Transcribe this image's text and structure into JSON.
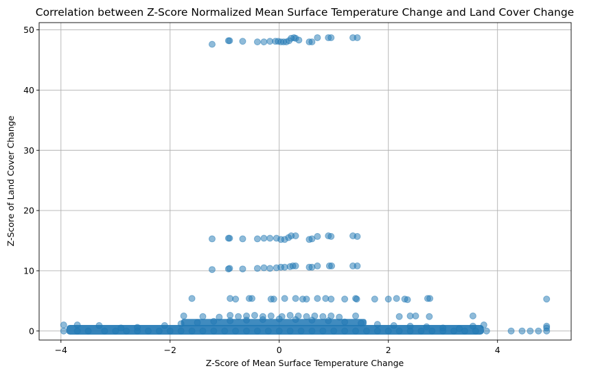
{
  "chart_data": {
    "type": "scatter",
    "title": "Correlation between Z-Score Normalized Mean Surface Temperature Change and Land Cover Change",
    "xlabel": "Z-Score of Mean Surface Temperature Change",
    "ylabel": "Z-Score of Land Cover Change",
    "xlim": [
      -4.4,
      5.35
    ],
    "ylim": [
      -1.5,
      51.2
    ],
    "xticks": [
      -4,
      -2,
      0,
      2,
      4
    ],
    "yticks": [
      0,
      10,
      20,
      30,
      40,
      50
    ],
    "grid": true,
    "color": "#1f77b4",
    "alpha": 0.5,
    "series": [
      {
        "points": [
          [
            -1.23,
            47.6
          ],
          [
            -0.93,
            48.2
          ],
          [
            -0.91,
            48.2
          ],
          [
            -0.67,
            48.1
          ],
          [
            -0.4,
            48.0
          ],
          [
            -0.28,
            48.0
          ],
          [
            -0.17,
            48.1
          ],
          [
            -0.07,
            48.1
          ],
          [
            -0.02,
            48.1
          ],
          [
            0.03,
            48.0
          ],
          [
            0.08,
            48.0
          ],
          [
            0.13,
            48.0
          ],
          [
            0.18,
            48.2
          ],
          [
            0.22,
            48.6
          ],
          [
            0.27,
            48.7
          ],
          [
            0.3,
            48.6
          ],
          [
            0.36,
            48.3
          ],
          [
            0.55,
            48.0
          ],
          [
            0.6,
            48.0
          ],
          [
            0.7,
            48.7
          ],
          [
            0.9,
            48.7
          ],
          [
            0.95,
            48.7
          ],
          [
            1.35,
            48.7
          ],
          [
            1.43,
            48.7
          ],
          [
            -1.23,
            15.3
          ],
          [
            -0.93,
            15.4
          ],
          [
            -0.91,
            15.4
          ],
          [
            -0.67,
            15.3
          ],
          [
            -0.4,
            15.3
          ],
          [
            -0.28,
            15.4
          ],
          [
            -0.17,
            15.4
          ],
          [
            -0.05,
            15.4
          ],
          [
            0.03,
            15.2
          ],
          [
            0.1,
            15.2
          ],
          [
            0.17,
            15.5
          ],
          [
            0.22,
            15.8
          ],
          [
            0.3,
            15.8
          ],
          [
            0.55,
            15.2
          ],
          [
            0.6,
            15.3
          ],
          [
            0.7,
            15.7
          ],
          [
            0.9,
            15.8
          ],
          [
            0.95,
            15.7
          ],
          [
            1.35,
            15.8
          ],
          [
            1.43,
            15.7
          ],
          [
            -1.23,
            10.2
          ],
          [
            -0.93,
            10.3
          ],
          [
            -0.91,
            10.4
          ],
          [
            -0.67,
            10.3
          ],
          [
            -0.4,
            10.4
          ],
          [
            -0.28,
            10.5
          ],
          [
            -0.17,
            10.4
          ],
          [
            -0.05,
            10.5
          ],
          [
            0.03,
            10.6
          ],
          [
            0.1,
            10.6
          ],
          [
            0.2,
            10.7
          ],
          [
            0.25,
            10.8
          ],
          [
            0.3,
            10.8
          ],
          [
            0.55,
            10.6
          ],
          [
            0.6,
            10.6
          ],
          [
            0.7,
            10.8
          ],
          [
            0.92,
            10.8
          ],
          [
            0.96,
            10.8
          ],
          [
            1.35,
            10.8
          ],
          [
            1.43,
            10.8
          ],
          [
            -1.6,
            5.4
          ],
          [
            -0.9,
            5.4
          ],
          [
            -0.8,
            5.3
          ],
          [
            -0.55,
            5.4
          ],
          [
            -0.5,
            5.4
          ],
          [
            -0.15,
            5.3
          ],
          [
            -0.1,
            5.3
          ],
          [
            0.1,
            5.4
          ],
          [
            0.3,
            5.4
          ],
          [
            0.43,
            5.3
          ],
          [
            0.5,
            5.3
          ],
          [
            0.7,
            5.4
          ],
          [
            0.85,
            5.4
          ],
          [
            0.95,
            5.3
          ],
          [
            1.2,
            5.3
          ],
          [
            1.4,
            5.4
          ],
          [
            1.42,
            5.3
          ],
          [
            1.75,
            5.3
          ],
          [
            2.0,
            5.3
          ],
          [
            2.15,
            5.4
          ],
          [
            2.3,
            5.3
          ],
          [
            2.35,
            5.2
          ],
          [
            2.72,
            5.4
          ],
          [
            2.76,
            5.4
          ],
          [
            4.9,
            5.3
          ],
          [
            -1.75,
            2.5
          ],
          [
            -1.4,
            2.4
          ],
          [
            -1.1,
            2.3
          ],
          [
            -0.9,
            2.6
          ],
          [
            -0.75,
            2.4
          ],
          [
            -0.6,
            2.5
          ],
          [
            -0.45,
            2.6
          ],
          [
            -0.3,
            2.4
          ],
          [
            -0.15,
            2.5
          ],
          [
            0.05,
            2.4
          ],
          [
            0.2,
            2.6
          ],
          [
            0.35,
            2.5
          ],
          [
            0.5,
            2.4
          ],
          [
            0.65,
            2.5
          ],
          [
            0.8,
            2.4
          ],
          [
            0.95,
            2.5
          ],
          [
            1.1,
            2.3
          ],
          [
            1.4,
            2.5
          ],
          [
            2.2,
            2.4
          ],
          [
            2.4,
            2.5
          ],
          [
            2.5,
            2.5
          ],
          [
            2.75,
            2.4
          ],
          [
            3.55,
            2.5
          ],
          [
            -3.95,
            1.0
          ],
          [
            -3.7,
            1.0
          ],
          [
            -3.3,
            0.9
          ],
          [
            -2.9,
            0.5
          ],
          [
            -2.6,
            0.6
          ],
          [
            -2.1,
            0.9
          ],
          [
            -1.8,
            1.2
          ],
          [
            -1.5,
            1.4
          ],
          [
            -1.2,
            1.6
          ],
          [
            -0.9,
            1.7
          ],
          [
            -0.6,
            1.8
          ],
          [
            -0.3,
            1.9
          ],
          [
            0.0,
            2.0
          ],
          [
            0.3,
            1.9
          ],
          [
            0.6,
            1.8
          ],
          [
            0.9,
            1.7
          ],
          [
            1.2,
            1.5
          ],
          [
            1.5,
            1.3
          ],
          [
            1.8,
            1.1
          ],
          [
            2.1,
            0.9
          ],
          [
            2.4,
            0.8
          ],
          [
            2.7,
            0.7
          ],
          [
            3.0,
            0.5
          ],
          [
            3.3,
            0.4
          ],
          [
            3.55,
            0.8
          ],
          [
            3.75,
            1.0
          ],
          [
            4.9,
            0.8
          ],
          [
            4.9,
            0.5
          ],
          [
            -3.95,
            0.0
          ],
          [
            -3.7,
            0.0
          ],
          [
            -3.5,
            0.0
          ],
          [
            -3.2,
            0.0
          ],
          [
            -3.0,
            0.0
          ],
          [
            -2.8,
            0.0
          ],
          [
            -2.6,
            0.0
          ],
          [
            -2.4,
            0.0
          ],
          [
            -2.2,
            0.0
          ],
          [
            -2.0,
            0.0
          ],
          [
            -1.8,
            0.0
          ],
          [
            -1.6,
            0.0
          ],
          [
            -1.4,
            0.0
          ],
          [
            -1.2,
            0.0
          ],
          [
            -1.0,
            0.0
          ],
          [
            -0.8,
            0.0
          ],
          [
            -0.6,
            0.0
          ],
          [
            -0.4,
            0.0
          ],
          [
            -0.2,
            0.0
          ],
          [
            0.0,
            0.0
          ],
          [
            0.2,
            0.0
          ],
          [
            0.4,
            0.0
          ],
          [
            0.6,
            0.0
          ],
          [
            0.8,
            0.0
          ],
          [
            1.0,
            0.0
          ],
          [
            1.2,
            0.0
          ],
          [
            1.4,
            0.0
          ],
          [
            1.6,
            0.0
          ],
          [
            1.8,
            0.0
          ],
          [
            2.0,
            0.0
          ],
          [
            2.2,
            0.0
          ],
          [
            2.4,
            0.0
          ],
          [
            2.6,
            0.0
          ],
          [
            2.8,
            0.0
          ],
          [
            3.0,
            0.0
          ],
          [
            3.2,
            0.0
          ],
          [
            3.4,
            0.0
          ],
          [
            3.6,
            0.0
          ],
          [
            3.8,
            0.0
          ],
          [
            4.25,
            0.0
          ],
          [
            4.45,
            0.0
          ],
          [
            4.6,
            0.0
          ],
          [
            4.75,
            0.0
          ],
          [
            4.9,
            0.0
          ]
        ]
      }
    ]
  }
}
